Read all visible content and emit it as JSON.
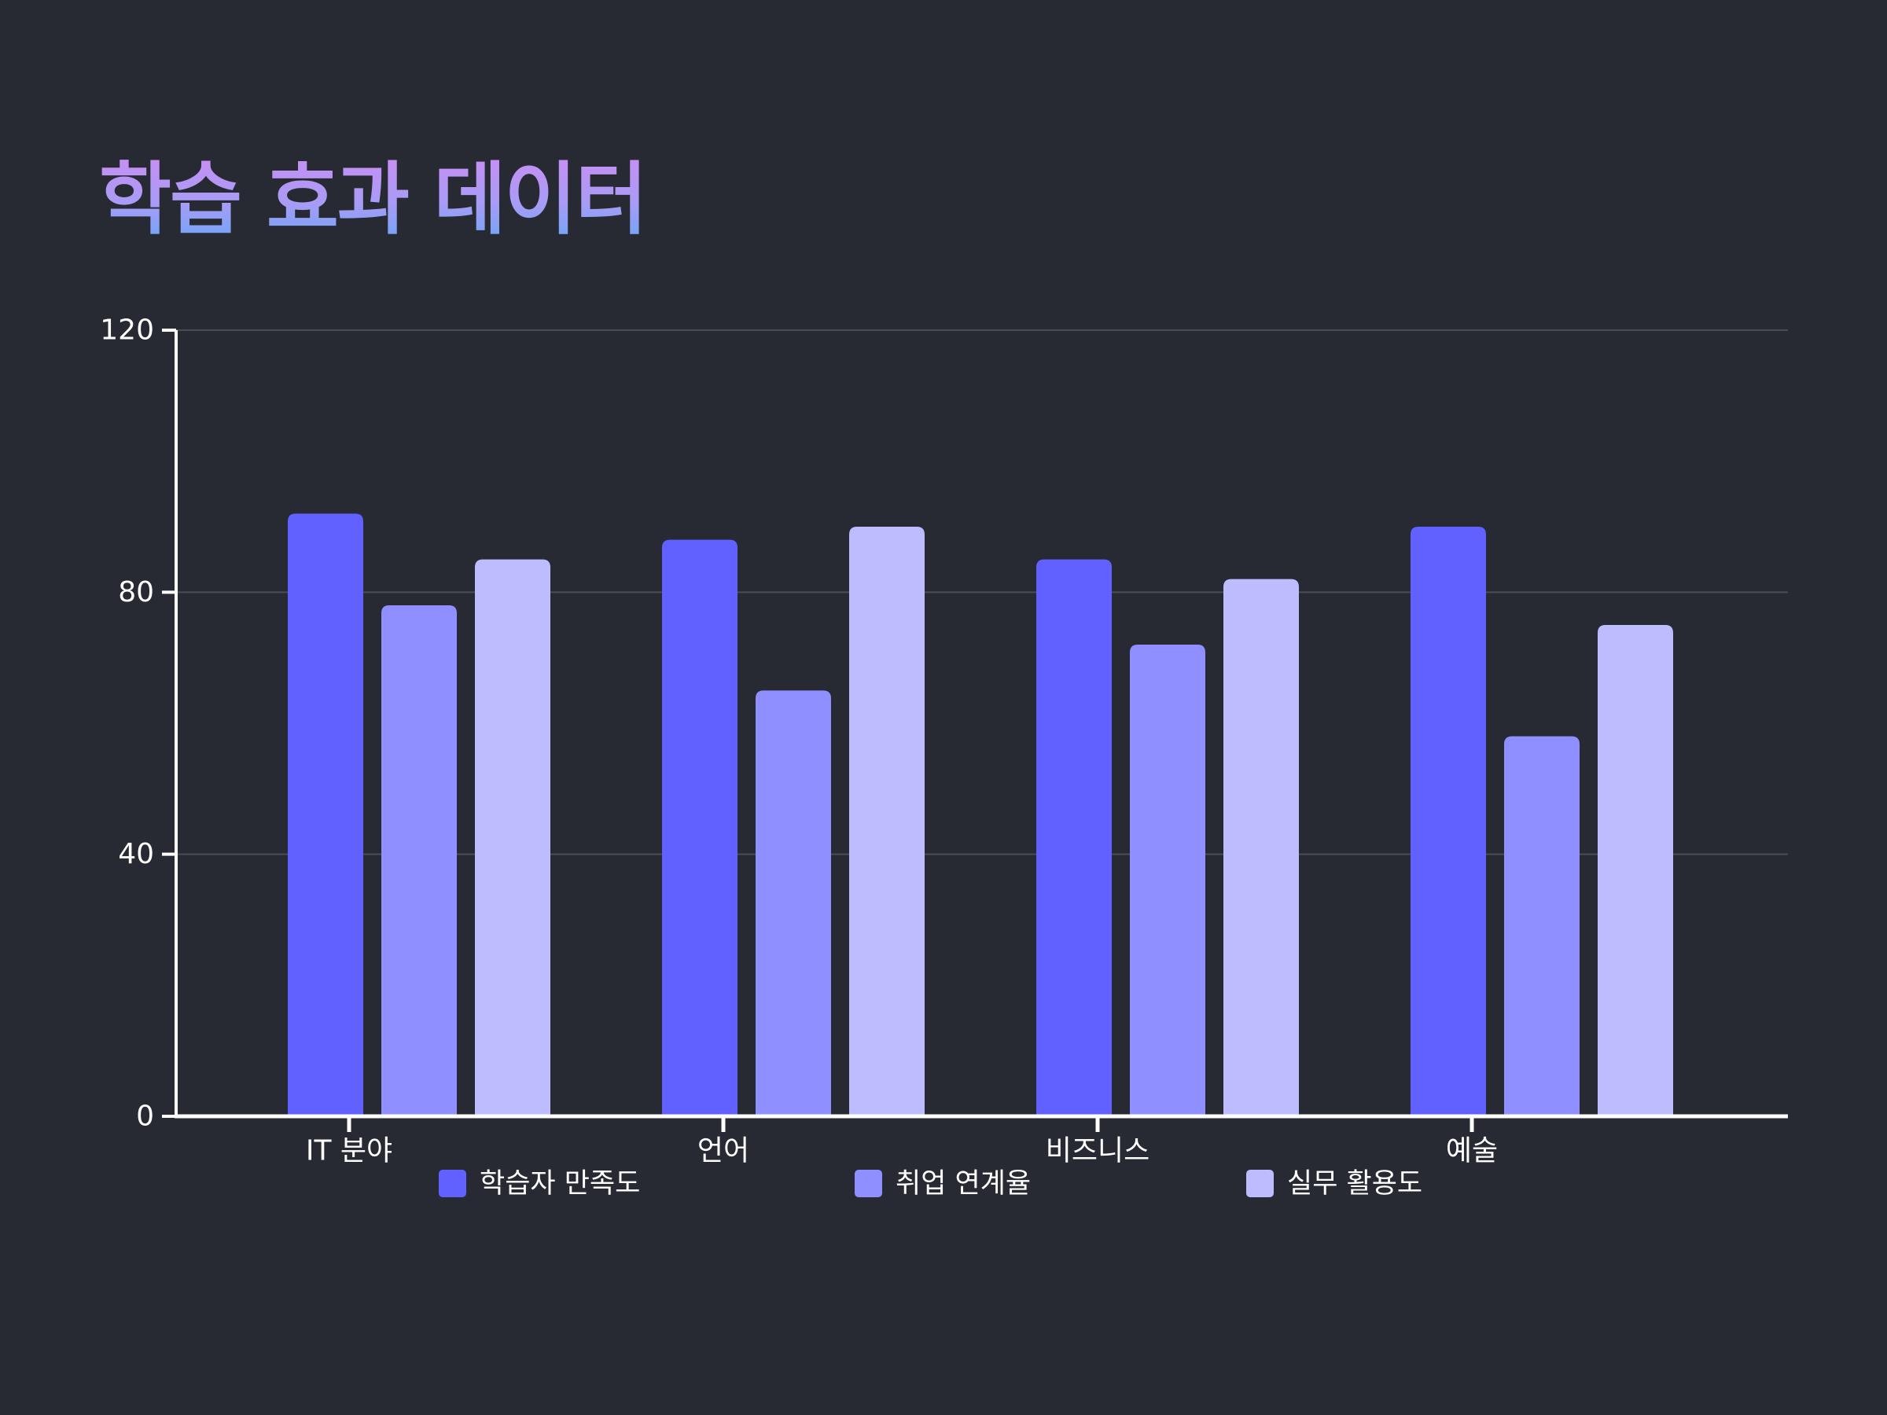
{
  "chart_data": {
    "type": "bar",
    "title": "학습 효과 데이터",
    "categories": [
      "IT 분야",
      "언어",
      "비즈니스",
      "예술"
    ],
    "series": [
      {
        "name": "학습자 만족도",
        "values": [
          92,
          88,
          85,
          90
        ],
        "color": "#6161ff"
      },
      {
        "name": "취업 연계율",
        "values": [
          78,
          65,
          72,
          58
        ],
        "color": "#8f8fff"
      },
      {
        "name": "실무 활용도",
        "values": [
          85,
          90,
          82,
          75
        ],
        "color": "#bcbcff"
      }
    ],
    "ylim": [
      0,
      120
    ],
    "yticks": [
      0,
      40,
      80,
      120
    ],
    "xlabel": "",
    "ylabel": "",
    "grid": true,
    "legend": "bottom",
    "colors": {
      "background": "#272a33",
      "axis": "#ffffff",
      "grid": "#4a4d56"
    }
  }
}
